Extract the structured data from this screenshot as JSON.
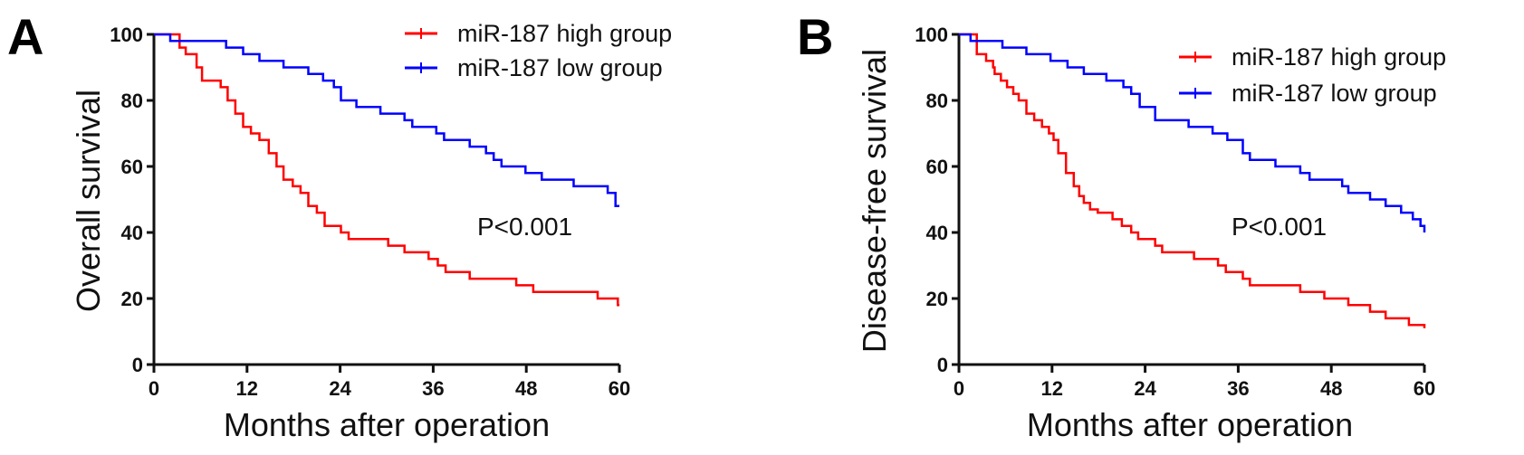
{
  "chart_data": [
    {
      "type": "line",
      "panel_label": "A",
      "xlabel": "Months after operation",
      "ylabel": "Overall survival",
      "xlim": [
        0,
        60
      ],
      "ylim": [
        0,
        100
      ],
      "xticks": [
        "0",
        "12",
        "24",
        "36",
        "48",
        "60"
      ],
      "yticks": [
        "0",
        "20",
        "40",
        "60",
        "80",
        "100"
      ],
      "grid": false,
      "legend_position": "top-right",
      "annotation": "P<0.001",
      "step": true,
      "series": [
        {
          "name": "miR-187 high group",
          "color": "#ff0000",
          "x": [
            0,
            3.3,
            4.1,
            5.5,
            6.2,
            8.6,
            9.5,
            10.5,
            11.5,
            12.5,
            13.6,
            14.8,
            15.8,
            16.7,
            17.9,
            18.9,
            19.9,
            21,
            22,
            24.1,
            25.1,
            30.2,
            32.3,
            35.4,
            36.6,
            37.6,
            40.7,
            46.7,
            48.9,
            57.2,
            59.8,
            60
          ],
          "y": [
            100,
            96,
            94,
            90,
            86,
            84,
            80,
            76,
            72,
            70,
            68,
            64,
            60,
            56,
            54,
            52,
            48,
            46,
            42,
            40,
            38,
            36,
            34,
            32,
            30,
            28,
            26,
            24,
            22,
            20,
            18,
            18
          ]
        },
        {
          "name": "miR-187 low group",
          "color": "#0000ff",
          "x": [
            0,
            2.1,
            9.3,
            11.5,
            13.6,
            16.7,
            19.9,
            21.8,
            23.2,
            24.1,
            26.1,
            29.2,
            32.3,
            33.3,
            36.4,
            37.4,
            40.7,
            42.8,
            43.8,
            44.8,
            47.9,
            50,
            54.1,
            58.5,
            59.5,
            60
          ],
          "y": [
            100,
            98,
            96,
            94,
            92,
            90,
            88,
            86,
            84,
            80,
            78,
            76,
            74,
            72,
            70,
            68,
            66,
            64,
            62,
            60,
            58,
            56,
            54,
            52,
            48,
            48
          ]
        }
      ]
    },
    {
      "type": "line",
      "panel_label": "B",
      "xlabel": "Months after operation",
      "ylabel": "Disease-free survival",
      "xlim": [
        0,
        60
      ],
      "ylim": [
        0,
        100
      ],
      "xticks": [
        "0",
        "12",
        "24",
        "36",
        "48",
        "60"
      ],
      "yticks": [
        "0",
        "20",
        "40",
        "60",
        "80",
        "100"
      ],
      "grid": false,
      "legend_position": "top-right",
      "annotation": "P<0.001",
      "step": true,
      "series": [
        {
          "name": "miR-187 high group",
          "color": "#ff0000",
          "x": [
            0,
            2.3,
            3.5,
            4.4,
            4.6,
            5.4,
            6.2,
            7,
            7.7,
            8.7,
            9.7,
            10.7,
            11.6,
            12.2,
            12.8,
            13.8,
            14.8,
            15.5,
            16.1,
            16.9,
            17.9,
            19.8,
            21,
            22.2,
            23.1,
            25.3,
            26.2,
            30.3,
            33.4,
            34.4,
            36.6,
            37.5,
            44,
            47.1,
            50.2,
            53,
            55,
            58,
            60
          ],
          "y": [
            100,
            94,
            92,
            90,
            88,
            86,
            84,
            82,
            80,
            76,
            74,
            72,
            70,
            68,
            64,
            58,
            54,
            51,
            49,
            47,
            46,
            44,
            42,
            40,
            38,
            36,
            34,
            32,
            30,
            28,
            26,
            24,
            22,
            20,
            18,
            16,
            14,
            12,
            11
          ]
        },
        {
          "name": "miR-187 low group",
          "color": "#0000ff",
          "x": [
            0,
            1.5,
            5.6,
            8.7,
            11.8,
            14,
            16.1,
            19,
            21.2,
            22.2,
            23.3,
            25.3,
            29.6,
            32.7,
            34.6,
            36.6,
            37.5,
            40.8,
            44,
            45.2,
            49.4,
            50.2,
            53,
            55,
            57,
            58.5,
            59.5,
            60
          ],
          "y": [
            100,
            98,
            96,
            94,
            92,
            90,
            88,
            86,
            84,
            82,
            78,
            74,
            72,
            70,
            68,
            64,
            62,
            60,
            58,
            56,
            54,
            52,
            50,
            48,
            46,
            44,
            42,
            40
          ]
        }
      ]
    }
  ]
}
